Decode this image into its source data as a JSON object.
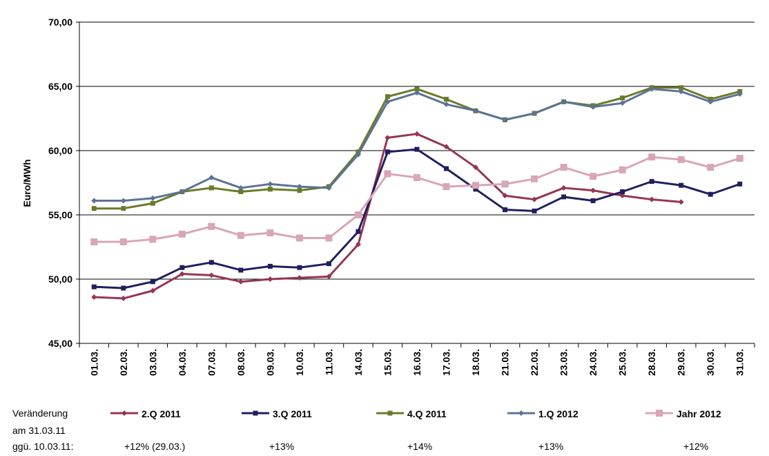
{
  "chart_data": {
    "type": "line",
    "y_label": "Euro/MWh",
    "categories": [
      "01.03.",
      "02.03.",
      "03.03.",
      "04.03.",
      "07.03.",
      "08.03.",
      "09.03.",
      "10.03.",
      "11.03.",
      "14.03.",
      "15.03.",
      "16.03.",
      "17.03.",
      "18.03.",
      "21.03.",
      "22.03.",
      "23.03.",
      "24.03.",
      "25.03.",
      "28.03.",
      "29.03.",
      "30.03.",
      "31.03."
    ],
    "ylim": [
      45,
      70
    ],
    "yticks": [
      {
        "value": 45,
        "label": "45,00"
      },
      {
        "value": 50,
        "label": "50,00"
      },
      {
        "value": 55,
        "label": "55,00"
      },
      {
        "value": 60,
        "label": "60,00"
      },
      {
        "value": 65,
        "label": "65,00"
      },
      {
        "value": 70,
        "label": "70,00"
      }
    ],
    "grid": true,
    "legend_note": [
      "Veränderung",
      "am 31.03.11",
      "ggü. 10.03.11:"
    ],
    "series": [
      {
        "name": "2.Q 2011",
        "color": "#953556",
        "marker": "diamond",
        "change_label": "+12% (29.03.)",
        "values": [
          48.6,
          48.5,
          49.1,
          50.4,
          50.3,
          49.8,
          50.0,
          50.1,
          50.2,
          52.7,
          61.0,
          61.3,
          60.3,
          58.7,
          56.5,
          56.2,
          57.1,
          56.9,
          56.5,
          56.2,
          56.0,
          null,
          null
        ]
      },
      {
        "name": "3.Q 2011",
        "color": "#1f1f5e",
        "marker": "square",
        "change_label": "+13%",
        "values": [
          49.4,
          49.3,
          49.8,
          50.9,
          51.3,
          50.7,
          51.0,
          50.9,
          51.2,
          53.7,
          59.9,
          60.1,
          58.6,
          57.0,
          55.4,
          55.3,
          56.4,
          56.1,
          56.8,
          57.6,
          57.3,
          56.6,
          57.4
        ]
      },
      {
        "name": "4.Q 2011",
        "color": "#6b7a2a",
        "marker": "square",
        "change_label": "+14%",
        "values": [
          55.5,
          55.5,
          55.9,
          56.8,
          57.1,
          56.8,
          57.0,
          56.9,
          57.2,
          59.9,
          64.2,
          64.8,
          64.0,
          63.1,
          62.4,
          62.9,
          63.8,
          63.5,
          64.1,
          64.9,
          64.9,
          64.0,
          64.6
        ]
      },
      {
        "name": "1.Q 2012",
        "color": "#5b7393",
        "marker": "diamond",
        "change_label": "+13%",
        "values": [
          56.1,
          56.1,
          56.3,
          56.8,
          57.9,
          57.1,
          57.4,
          57.2,
          57.1,
          59.7,
          63.8,
          64.5,
          63.6,
          63.1,
          62.4,
          62.9,
          63.8,
          63.4,
          63.7,
          64.8,
          64.6,
          63.8,
          64.4
        ]
      },
      {
        "name": "Jahr 2012",
        "color": "#d9a5b8",
        "marker": "bigsquare",
        "change_label": "+12%",
        "values": [
          52.9,
          52.9,
          53.1,
          53.5,
          54.1,
          53.4,
          53.6,
          53.2,
          53.2,
          55.0,
          58.2,
          57.9,
          57.2,
          57.3,
          57.4,
          57.8,
          58.7,
          58.0,
          58.5,
          59.5,
          59.3,
          58.7,
          59.4
        ]
      }
    ]
  }
}
